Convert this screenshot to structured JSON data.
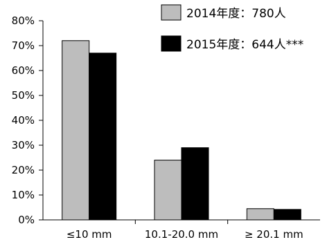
{
  "chart_data": {
    "type": "bar",
    "categories": [
      "≤10 mm",
      "10.1-20.0 mm",
      "≥ 20.1 mm"
    ],
    "series": [
      {
        "name": "2014年度：780人",
        "values": [
          72,
          24,
          4.5
        ],
        "color": "#bdbdbd"
      },
      {
        "name": "2015年度：644人***",
        "values": [
          67,
          29,
          4.2
        ],
        "color": "#000000"
      }
    ],
    "ylim": [
      0,
      80
    ],
    "yticks": [
      "0%",
      "10%",
      "20%",
      "30%",
      "40%",
      "50%",
      "60%",
      "70%",
      "80%"
    ],
    "xlabel": "",
    "ylabel": "",
    "grid": false,
    "legend_position": "top-right"
  }
}
